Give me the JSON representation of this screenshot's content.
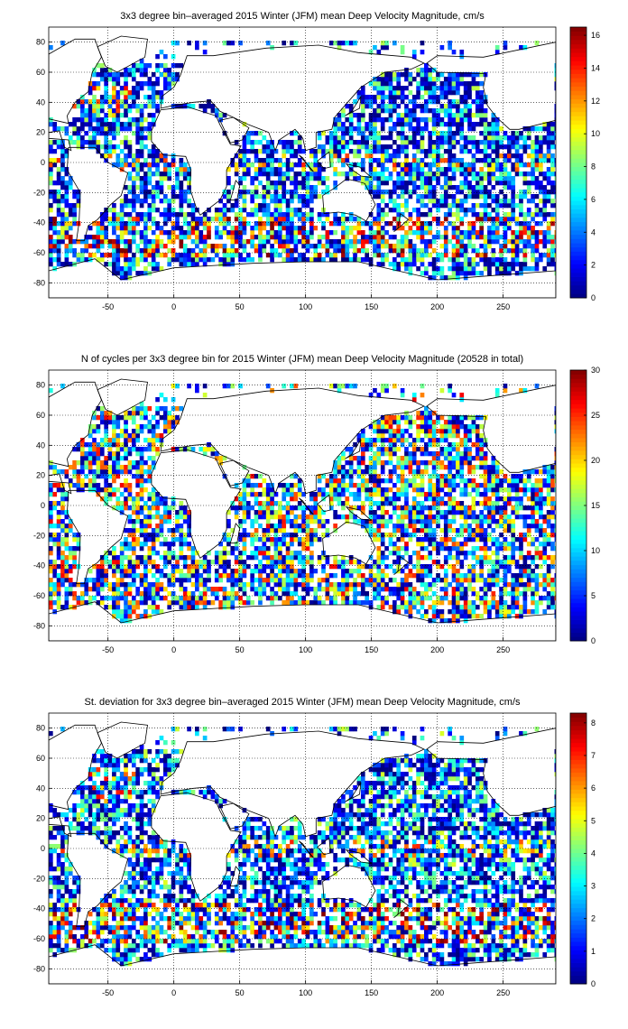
{
  "chart_data": [
    {
      "type": "heatmap",
      "title": "3x3 degree bin–averaged 2015 Winter (JFM) mean Deep Velocity Magnitude, cm/s",
      "xlim": [
        -95,
        290
      ],
      "ylim": [
        -90,
        90
      ],
      "xticks": [
        -50,
        0,
        50,
        100,
        150,
        200,
        250
      ],
      "yticks": [
        80,
        60,
        40,
        20,
        0,
        -20,
        -40,
        -60,
        -80
      ],
      "grid": true,
      "colorbar": {
        "min": 0,
        "max": 16.5,
        "ticks": [
          16,
          14,
          12,
          10,
          8,
          6,
          4,
          2,
          0
        ]
      },
      "colormap": "jet"
    },
    {
      "type": "heatmap",
      "title": "N of cycles per 3x3 degree bin for 2015 Winter (JFM) mean Deep Velocity Magnitude (20528 in total)",
      "xlim": [
        -95,
        290
      ],
      "ylim": [
        -90,
        90
      ],
      "xticks": [
        -50,
        0,
        50,
        100,
        150,
        200,
        250
      ],
      "yticks": [
        80,
        60,
        40,
        20,
        0,
        -20,
        -40,
        -60,
        -80
      ],
      "grid": true,
      "colorbar": {
        "min": 0,
        "max": 30,
        "ticks": [
          30,
          25,
          20,
          15,
          10,
          5,
          0
        ]
      },
      "colormap": "jet"
    },
    {
      "type": "heatmap",
      "title": "St. deviation for 3x3 degree bin–averaged 2015 Winter (JFM) mean Deep Velocity Magnitude, cm/s",
      "xlim": [
        -95,
        290
      ],
      "ylim": [
        -90,
        90
      ],
      "xticks": [
        -50,
        0,
        50,
        100,
        150,
        200,
        250
      ],
      "yticks": [
        80,
        60,
        40,
        20,
        0,
        -20,
        -40,
        -60,
        -80
      ],
      "grid": true,
      "colorbar": {
        "min": 0,
        "max": 8.3,
        "ticks": [
          8,
          7,
          6,
          5,
          4,
          3,
          2,
          1,
          0
        ]
      },
      "colormap": "jet"
    }
  ]
}
